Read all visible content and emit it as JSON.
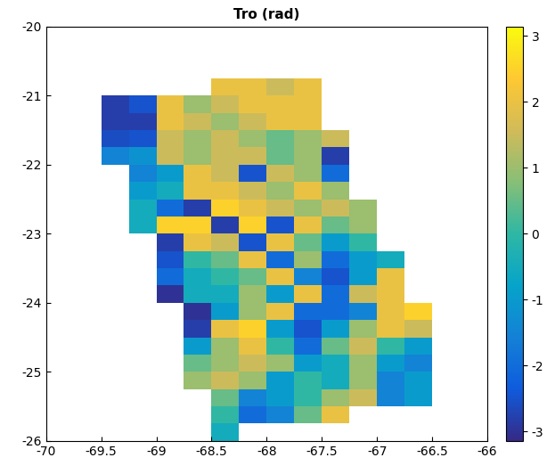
{
  "chart_data": {
    "type": "heatmap",
    "title": "Tro (rad)",
    "x": [
      -69.625,
      -69.375,
      -69.125,
      -68.875,
      -68.625,
      -68.375,
      -68.125,
      -67.875,
      -67.625,
      -67.375,
      -67.125,
      -66.875,
      -66.625,
      -66.375
    ],
    "y": [
      -20.875,
      -21.125,
      -21.375,
      -21.625,
      -21.875,
      -22.125,
      -22.375,
      -22.625,
      -22.875,
      -23.125,
      -23.375,
      -23.625,
      -23.875,
      -24.125,
      -24.375,
      -24.625,
      -24.875,
      -25.125,
      -25.375,
      -25.625,
      -25.875
    ],
    "cells": [
      [
        null,
        null,
        null,
        null,
        null,
        2,
        2,
        1.5,
        2,
        null,
        null,
        null,
        null,
        null
      ],
      [
        null,
        -2.8,
        -2.5,
        2,
        1,
        1.5,
        2,
        2,
        2,
        null,
        null,
        null,
        null,
        null
      ],
      [
        null,
        -2.8,
        -2.8,
        2,
        1.5,
        1,
        1.5,
        2,
        2,
        null,
        null,
        null,
        null,
        null
      ],
      [
        null,
        -2.6,
        -2.5,
        1.5,
        1,
        1.5,
        1,
        0.5,
        1,
        1.5,
        null,
        null,
        null,
        null
      ],
      [
        null,
        -1.5,
        -1.2,
        1.5,
        1,
        1.5,
        1.5,
        0.5,
        1,
        -2.8,
        null,
        null,
        null,
        null
      ],
      [
        null,
        null,
        -1.5,
        -1,
        2,
        1.5,
        -2.5,
        1.5,
        1,
        -2,
        null,
        null,
        null,
        null
      ],
      [
        null,
        null,
        -1,
        -0.5,
        2,
        2,
        1.5,
        1,
        2,
        1,
        null,
        null,
        null,
        null
      ],
      [
        null,
        null,
        -0.5,
        -2,
        -2.8,
        2.5,
        2,
        1.5,
        1,
        1.5,
        1,
        null,
        null,
        null
      ],
      [
        null,
        null,
        -0.5,
        2.5,
        2.5,
        -2.8,
        2.5,
        -2.5,
        2,
        0.5,
        1,
        null,
        null,
        null
      ],
      [
        null,
        null,
        null,
        -2.8,
        2,
        1.5,
        -2.5,
        2,
        0.5,
        -1,
        0,
        null,
        null,
        null
      ],
      [
        null,
        null,
        null,
        -2.5,
        0,
        0.5,
        2,
        -2,
        1,
        -2,
        -1,
        -0.5,
        null,
        null
      ],
      [
        null,
        null,
        null,
        -2,
        -0.5,
        0,
        0.5,
        2,
        -1.5,
        -2.5,
        -1,
        2,
        null,
        null
      ],
      [
        null,
        null,
        null,
        -3,
        -0.5,
        -0.5,
        1,
        -1,
        2,
        -2,
        1.5,
        2,
        null,
        null
      ],
      [
        null,
        null,
        null,
        null,
        -3,
        -1,
        1,
        2,
        -2,
        -2,
        -1.5,
        2,
        2.5,
        null
      ],
      [
        null,
        null,
        null,
        null,
        -2.8,
        2,
        2.5,
        -1,
        -2.5,
        -1,
        1,
        2,
        1.5,
        null
      ],
      [
        null,
        null,
        null,
        null,
        -1,
        1,
        2,
        0,
        -2,
        0.5,
        1.5,
        0,
        -1,
        null
      ],
      [
        null,
        null,
        null,
        null,
        0.5,
        1,
        1.5,
        1,
        -1,
        -0.5,
        1,
        -1,
        -1.5,
        null
      ],
      [
        null,
        null,
        null,
        null,
        1,
        1.5,
        1,
        -1,
        0,
        -0.5,
        1,
        -1.5,
        -1,
        null
      ],
      [
        null,
        null,
        null,
        null,
        null,
        0.5,
        -1.5,
        -1,
        0,
        1,
        1.5,
        -1.5,
        -1,
        null
      ],
      [
        null,
        null,
        null,
        null,
        null,
        0,
        -2,
        -1.5,
        0.5,
        2,
        null,
        null,
        null,
        null
      ],
      [
        null,
        null,
        null,
        null,
        null,
        -0.5,
        null,
        null,
        null,
        null,
        null,
        null,
        null,
        null
      ]
    ],
    "xlim": [
      -70,
      -66
    ],
    "xticks": [
      -70,
      -69.5,
      -69,
      -68.5,
      -68,
      -67.5,
      -67,
      -66.5,
      -66
    ],
    "ylim": [
      -26,
      -20
    ],
    "yticks": [
      -26,
      -25,
      -24,
      -23,
      -22,
      -21,
      -20
    ],
    "clim": [
      -3.1416,
      3.1416
    ],
    "cbar_ticks": [
      -3,
      -2,
      -1,
      0,
      1,
      2,
      3
    ],
    "grid": false
  }
}
